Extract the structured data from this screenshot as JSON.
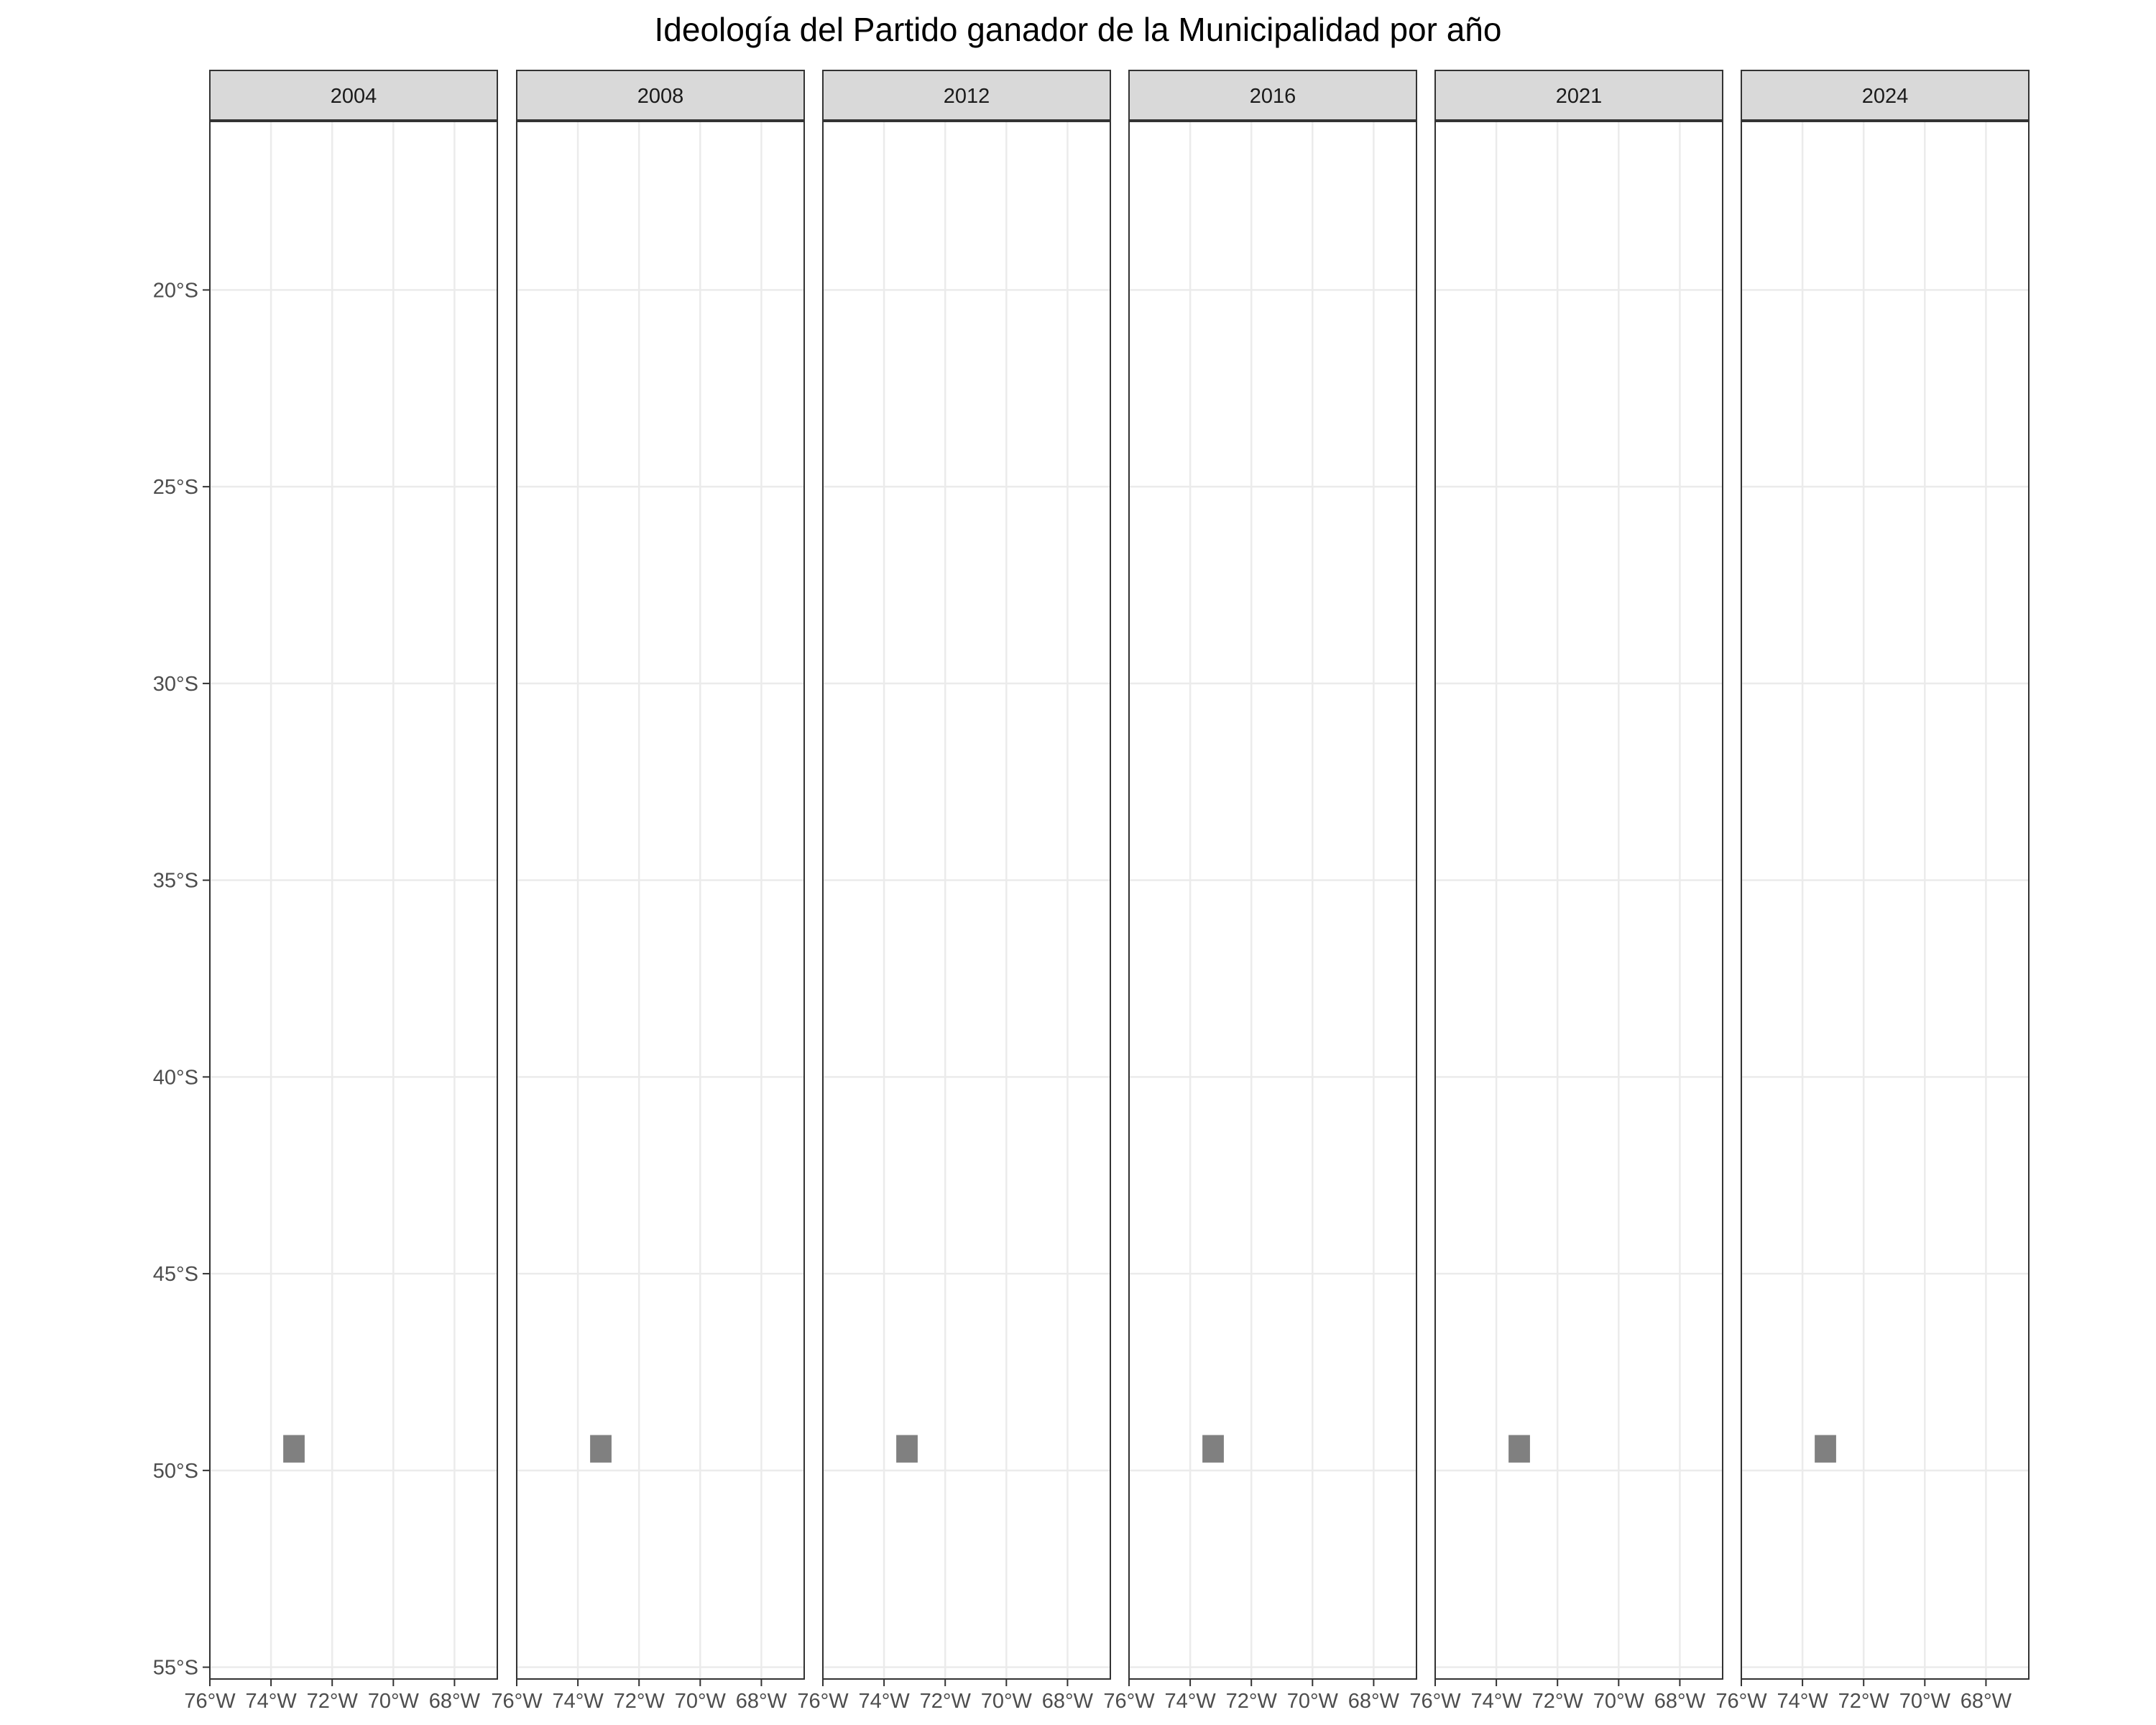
{
  "title": "Ideología del Partido ganador de la Municipalidad por año",
  "colors": {
    "background": "#ffffff",
    "grid": "#ebebeb",
    "panel_border": "#333333",
    "strip_fill": "#d9d9d9",
    "feature_fill": "#808080",
    "axis_text": "#4d4d4d"
  },
  "chart_data": {
    "type": "map",
    "facets": [
      "2004",
      "2008",
      "2012",
      "2016",
      "2021",
      "2024"
    ],
    "x_axis": {
      "ticks": [
        -76,
        -74,
        -72,
        -70,
        -68
      ],
      "tick_labels": [
        "76°W",
        "74°W",
        "72°W",
        "70°W",
        "68°W"
      ],
      "lim": [
        -76,
        -66.6
      ]
    },
    "y_axis": {
      "ticks": [
        -20,
        -25,
        -30,
        -35,
        -40,
        -45,
        -50,
        -55
      ],
      "tick_labels": [
        "20°S",
        "25°S",
        "30°S",
        "35°S",
        "40°S",
        "45°S",
        "50°S",
        "55°S"
      ],
      "lim": [
        -55.3,
        -15.7
      ]
    },
    "features": [
      {
        "facet": "2004",
        "lon": [
          -73.6,
          -72.9
        ],
        "lat": [
          -49.8,
          -49.1
        ],
        "fill": "#808080"
      },
      {
        "facet": "2008",
        "lon": [
          -73.6,
          -72.9
        ],
        "lat": [
          -49.8,
          -49.1
        ],
        "fill": "#808080"
      },
      {
        "facet": "2012",
        "lon": [
          -73.6,
          -72.9
        ],
        "lat": [
          -49.8,
          -49.1
        ],
        "fill": "#808080"
      },
      {
        "facet": "2016",
        "lon": [
          -73.6,
          -72.9
        ],
        "lat": [
          -49.8,
          -49.1
        ],
        "fill": "#808080"
      },
      {
        "facet": "2021",
        "lon": [
          -73.6,
          -72.9
        ],
        "lat": [
          -49.8,
          -49.1
        ],
        "fill": "#808080"
      },
      {
        "facet": "2024",
        "lon": [
          -73.6,
          -72.9
        ],
        "lat": [
          -49.8,
          -49.1
        ],
        "fill": "#808080"
      }
    ],
    "grid": true,
    "legend": "none"
  }
}
